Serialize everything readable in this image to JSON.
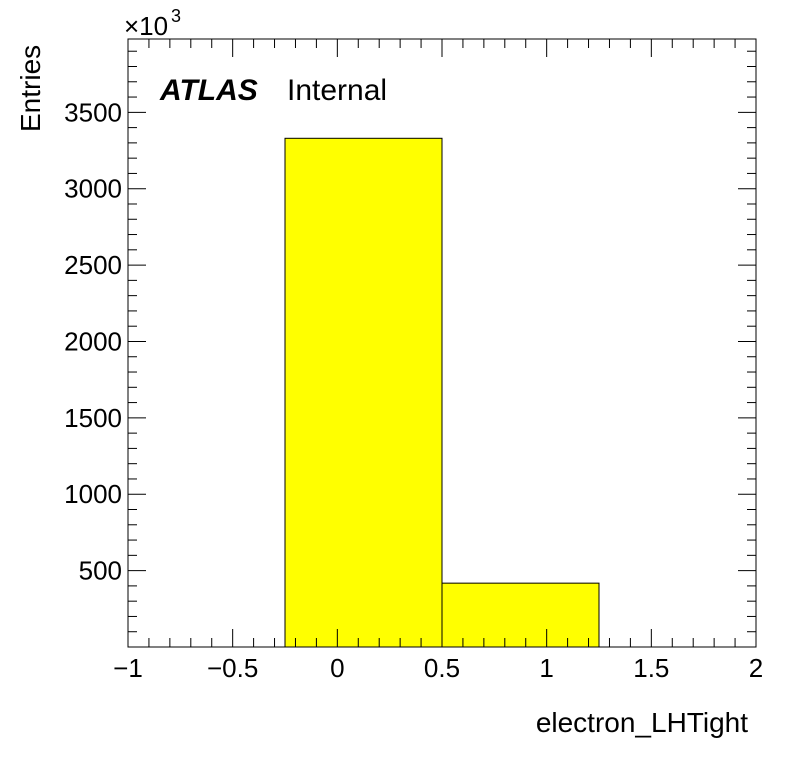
{
  "chart_data": {
    "type": "bar",
    "histogram": true,
    "bins": [
      {
        "low": -0.25,
        "high": 0.5,
        "value": 3330
      },
      {
        "low": 0.5,
        "high": 1.25,
        "value": 418
      }
    ],
    "xlim": [
      -1,
      2
    ],
    "ylim": [
      0,
      3980
    ],
    "x_ticks": [
      -1,
      -0.5,
      0,
      0.5,
      1,
      1.5,
      2
    ],
    "x_tick_labels": [
      "−1",
      "−0.5",
      "0",
      "0.5",
      "1",
      "1.5",
      "2"
    ],
    "y_ticks": [
      500,
      1000,
      1500,
      2000,
      2500,
      3000,
      3500
    ],
    "y_tick_labels": [
      "500",
      "1000",
      "1500",
      "2000",
      "2500",
      "3000",
      "3500"
    ],
    "y_scale_label": "×10",
    "y_scale_exponent": "3",
    "xlabel": "electron_LHTight",
    "ylabel": "Entries",
    "bar_color": "#ffff00",
    "grid": false
  },
  "labels": {
    "experiment": "ATLAS",
    "status": "Internal"
  }
}
